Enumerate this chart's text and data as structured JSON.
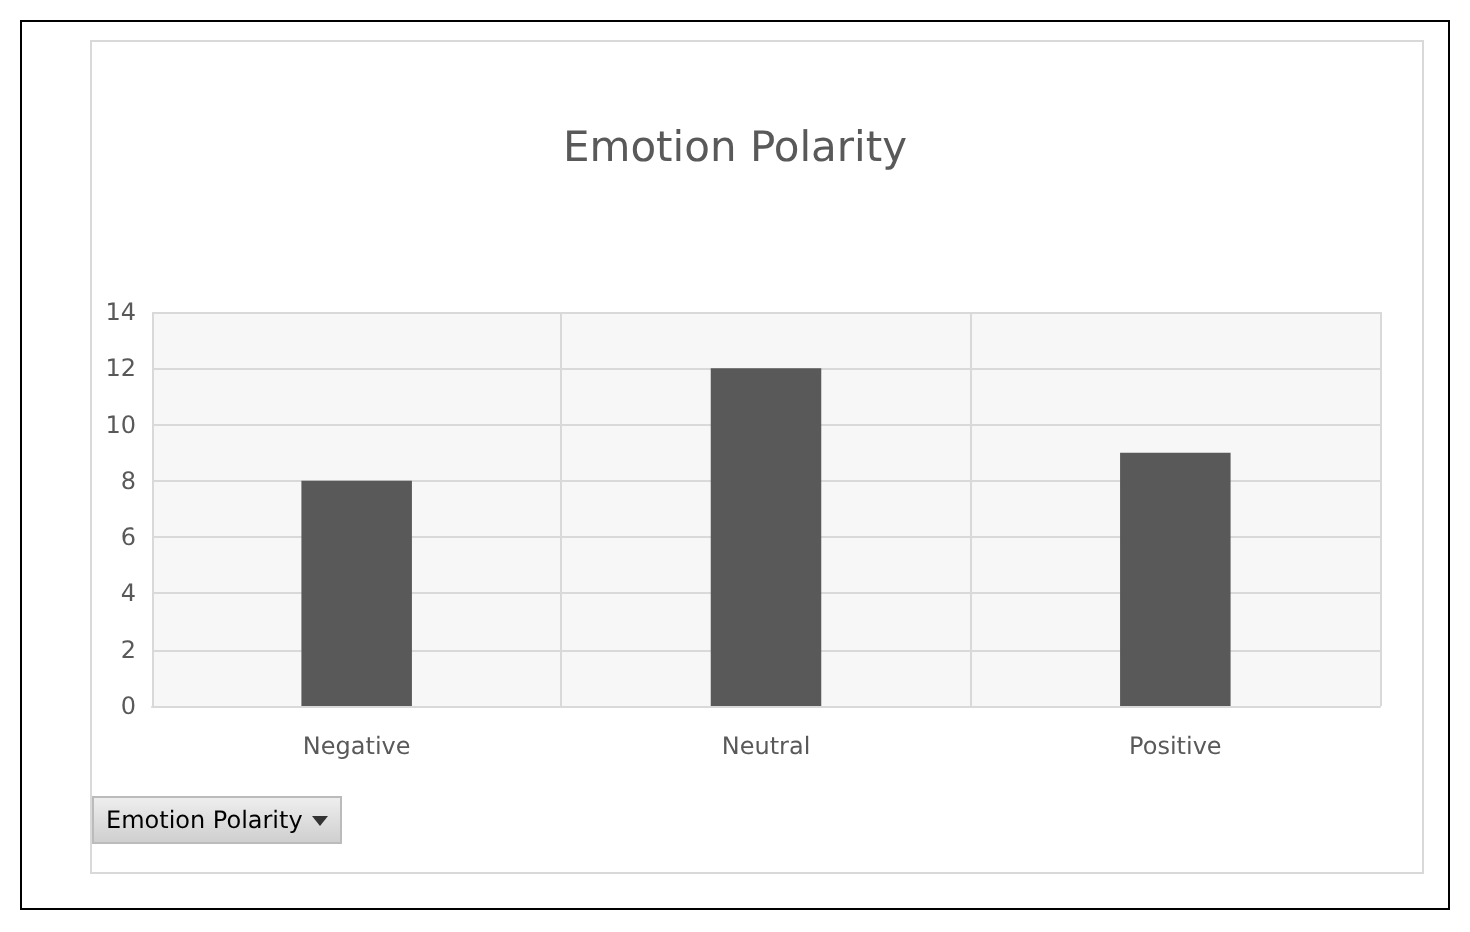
{
  "chart_data": {
    "type": "bar",
    "title": "Emotion Polarity",
    "categories": [
      "Negative",
      "Neutral",
      "Positive"
    ],
    "values": [
      8,
      12,
      9
    ],
    "color": "#595959",
    "ylim": [
      0,
      14
    ],
    "yticks": [
      0,
      2,
      4,
      6,
      8,
      10,
      12,
      14
    ],
    "grid": true,
    "annotations": [
      "Emotion Polarity"
    ]
  }
}
